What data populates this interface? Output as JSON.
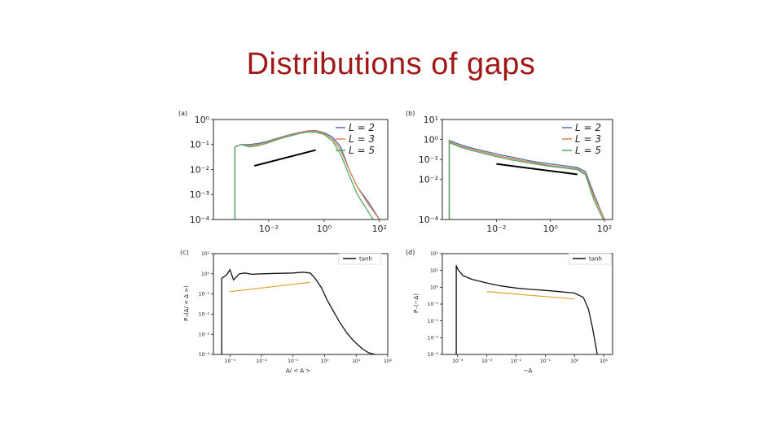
{
  "slide": {
    "title": "Distributions of gaps"
  },
  "colors": {
    "title": "#a01818",
    "L2": "#4c72b0",
    "L3": "#dd8452",
    "L5": "#55a868",
    "tanh": "#111111",
    "guide_top": "#000000",
    "guide_bottom": "#e0a93a"
  },
  "chart_data": [
    {
      "id": "a",
      "panel_label": "(a)",
      "type": "line",
      "xscale": "log",
      "yscale": "log",
      "xlim": [
        0.0001,
        200
      ],
      "ylim": [
        0.0001,
        1
      ],
      "xticks": [
        {
          "v": 0.01,
          "label": "10⁻²"
        },
        {
          "v": 1,
          "label": "10⁰"
        },
        {
          "v": 100,
          "label": "10²"
        }
      ],
      "yticks": [
        {
          "v": 1,
          "label": "10⁰"
        },
        {
          "v": 0.1,
          "label": "10⁻¹"
        },
        {
          "v": 0.01,
          "label": "10⁻²"
        },
        {
          "v": 0.001,
          "label": "10⁻³"
        },
        {
          "v": 0.0001,
          "label": "10⁻⁴"
        }
      ],
      "legend": {
        "placement": "top-right",
        "entries": [
          "L = 2",
          "L = 3",
          "L = 5"
        ]
      },
      "series": [
        {
          "name": "L = 2",
          "color": "#4c72b0",
          "x": [
            0.0006,
            0.0006,
            0.001,
            0.002,
            0.004,
            0.008,
            0.015,
            0.03,
            0.06,
            0.12,
            0.25,
            0.5,
            1,
            2,
            4,
            8,
            16,
            40,
            100
          ],
          "y": [
            0.0001,
            0.08,
            0.1,
            0.1,
            0.11,
            0.13,
            0.16,
            0.2,
            0.25,
            0.3,
            0.35,
            0.36,
            0.3,
            0.2,
            0.08,
            0.01,
            0.002,
            0.0005,
            0.0001
          ]
        },
        {
          "name": "L = 3",
          "color": "#dd8452",
          "x": [
            0.0006,
            0.0006,
            0.001,
            0.002,
            0.004,
            0.008,
            0.015,
            0.03,
            0.06,
            0.12,
            0.25,
            0.5,
            1,
            2,
            4,
            8,
            16,
            40,
            100
          ],
          "y": [
            0.0001,
            0.08,
            0.1,
            0.09,
            0.1,
            0.12,
            0.15,
            0.19,
            0.24,
            0.29,
            0.34,
            0.34,
            0.28,
            0.17,
            0.06,
            0.01,
            0.002,
            0.0004,
            0.0001
          ]
        },
        {
          "name": "L = 5",
          "color": "#55a868",
          "x": [
            0.0006,
            0.0006,
            0.001,
            0.002,
            0.004,
            0.008,
            0.015,
            0.03,
            0.06,
            0.12,
            0.25,
            0.5,
            1,
            2,
            4,
            8,
            16,
            40,
            60
          ],
          "y": [
            0.0001,
            0.08,
            0.1,
            0.08,
            0.09,
            0.11,
            0.14,
            0.18,
            0.22,
            0.27,
            0.31,
            0.31,
            0.25,
            0.14,
            0.04,
            0.006,
            0.001,
            0.0002,
            0.0001
          ]
        }
      ],
      "guide_line": {
        "x": [
          0.003,
          0.5
        ],
        "y": [
          0.014,
          0.06
        ]
      }
    },
    {
      "id": "b",
      "panel_label": "(b)",
      "type": "line",
      "xscale": "log",
      "yscale": "log",
      "xlim": [
        0.0001,
        200
      ],
      "ylim": [
        0.0001,
        10
      ],
      "xticks": [
        {
          "v": 0.01,
          "label": "10⁻²"
        },
        {
          "v": 1,
          "label": "10⁰"
        },
        {
          "v": 100,
          "label": "10²"
        }
      ],
      "yticks": [
        {
          "v": 10,
          "label": "10¹"
        },
        {
          "v": 1,
          "label": "10⁰"
        },
        {
          "v": 0.1,
          "label": "10⁻¹"
        },
        {
          "v": 0.01,
          "label": "10⁻²"
        },
        {
          "v": 0.0001,
          "label": "10⁻⁴"
        }
      ],
      "legend": {
        "placement": "top-right",
        "entries": [
          "L = 2",
          "L = 3",
          "L = 5"
        ]
      },
      "series": [
        {
          "name": "L = 2",
          "color": "#4c72b0",
          "x": [
            0.00018,
            0.00018,
            0.0004,
            0.001,
            0.003,
            0.01,
            0.03,
            0.1,
            0.3,
            1,
            3,
            10,
            20,
            40,
            100
          ],
          "y": [
            0.0001,
            0.9,
            0.6,
            0.4,
            0.28,
            0.19,
            0.14,
            0.1,
            0.075,
            0.06,
            0.05,
            0.04,
            0.025,
            0.002,
            0.0001
          ]
        },
        {
          "name": "L = 3",
          "color": "#dd8452",
          "x": [
            0.00018,
            0.00018,
            0.0004,
            0.001,
            0.003,
            0.01,
            0.03,
            0.1,
            0.3,
            1,
            3,
            10,
            20,
            40,
            100
          ],
          "y": [
            0.0001,
            0.8,
            0.5,
            0.35,
            0.24,
            0.16,
            0.12,
            0.085,
            0.065,
            0.05,
            0.042,
            0.035,
            0.02,
            0.0015,
            0.0001
          ]
        },
        {
          "name": "L = 5",
          "color": "#55a868",
          "x": [
            0.00018,
            0.00018,
            0.0004,
            0.001,
            0.003,
            0.01,
            0.03,
            0.1,
            0.3,
            1,
            3,
            10,
            20,
            40,
            90
          ],
          "y": [
            0.0001,
            0.7,
            0.45,
            0.3,
            0.21,
            0.14,
            0.1,
            0.075,
            0.058,
            0.045,
            0.038,
            0.031,
            0.017,
            0.001,
            0.0001
          ]
        }
      ],
      "guide_line": {
        "x": [
          0.01,
          10
        ],
        "y": [
          0.06,
          0.018
        ]
      }
    },
    {
      "id": "c",
      "panel_label": "(c)",
      "type": "line",
      "xscale": "log",
      "yscale": "log",
      "xlim": [
        0.0003,
        100
      ],
      "ylim": [
        0.0001,
        10
      ],
      "xticks": [
        {
          "v": 0.001,
          "label": "10⁻³"
        },
        {
          "v": 0.01,
          "label": "10⁻²"
        },
        {
          "v": 0.1,
          "label": "10⁻¹"
        },
        {
          "v": 1,
          "label": "10⁰"
        },
        {
          "v": 10,
          "label": "10¹"
        },
        {
          "v": 100,
          "label": "10²"
        }
      ],
      "yticks": [
        {
          "v": 10,
          "label": "10¹"
        },
        {
          "v": 1,
          "label": "10⁰"
        },
        {
          "v": 0.1,
          "label": "10⁻¹"
        },
        {
          "v": 0.01,
          "label": "10⁻²"
        },
        {
          "v": 0.001,
          "label": "10⁻³"
        },
        {
          "v": 0.0001,
          "label": "10⁻⁴"
        }
      ],
      "xlabel": "Δ/ < Δ >",
      "ylabel": "P₊(Δ/ < Δ >)",
      "legend": {
        "placement": "top-right",
        "entries": [
          "tanh"
        ]
      },
      "series": [
        {
          "name": "tanh",
          "color": "#111111",
          "x": [
            0.00055,
            0.00055,
            0.0008,
            0.001,
            0.0013,
            0.002,
            0.003,
            0.005,
            0.01,
            0.03,
            0.1,
            0.2,
            0.35,
            0.5,
            0.8,
            1.2,
            2,
            3,
            5,
            8,
            15,
            25,
            40
          ],
          "y": [
            0.0001,
            0.6,
            0.9,
            1.6,
            0.5,
            1.0,
            1.1,
            0.95,
            1.0,
            1.05,
            1.1,
            1.2,
            1.1,
            0.6,
            0.2,
            0.05,
            0.012,
            0.004,
            0.0012,
            0.0005,
            0.0002,
            0.00012,
            0.0001
          ]
        }
      ],
      "guide_line": {
        "x": [
          0.001,
          0.35
        ],
        "y": [
          0.13,
          0.38
        ]
      }
    },
    {
      "id": "d",
      "panel_label": "(d)",
      "type": "line",
      "xscale": "log",
      "yscale": "log",
      "xlim": [
        3e-05,
        20
      ],
      "ylim": [
        0.0001,
        100
      ],
      "xticks": [
        {
          "v": 0.0001,
          "label": "10⁻⁴"
        },
        {
          "v": 0.001,
          "label": "10⁻³"
        },
        {
          "v": 0.01,
          "label": "10⁻²"
        },
        {
          "v": 0.1,
          "label": "10⁻¹"
        },
        {
          "v": 1,
          "label": "10⁰"
        },
        {
          "v": 10,
          "label": "10¹"
        }
      ],
      "yticks": [
        {
          "v": 100,
          "label": "10²"
        },
        {
          "v": 10,
          "label": "10¹"
        },
        {
          "v": 1,
          "label": "10⁰"
        },
        {
          "v": 0.1,
          "label": "10⁻¹"
        },
        {
          "v": 0.01,
          "label": "10⁻²"
        },
        {
          "v": 0.001,
          "label": "10⁻³"
        },
        {
          "v": 0.0001,
          "label": "10⁻⁴"
        }
      ],
      "xlabel": "−Δ",
      "ylabel": "P₋(−Δ)",
      "legend": {
        "placement": "top-right",
        "entries": [
          "tanh"
        ]
      },
      "series": [
        {
          "name": "tanh",
          "color": "#111111",
          "x": [
            9e-05,
            9e-05,
            0.0001,
            0.00015,
            0.0003,
            0.001,
            0.003,
            0.01,
            0.03,
            0.1,
            0.3,
            1,
            2,
            3,
            4,
            5,
            6
          ],
          "y": [
            0.0001,
            20,
            12,
            5,
            3,
            1.8,
            1.2,
            0.9,
            0.75,
            0.65,
            0.55,
            0.45,
            0.25,
            0.05,
            0.005,
            0.0006,
            0.0001
          ]
        }
      ],
      "guide_line": {
        "x": [
          0.001,
          1
        ],
        "y": [
          0.55,
          0.2
        ]
      }
    }
  ]
}
